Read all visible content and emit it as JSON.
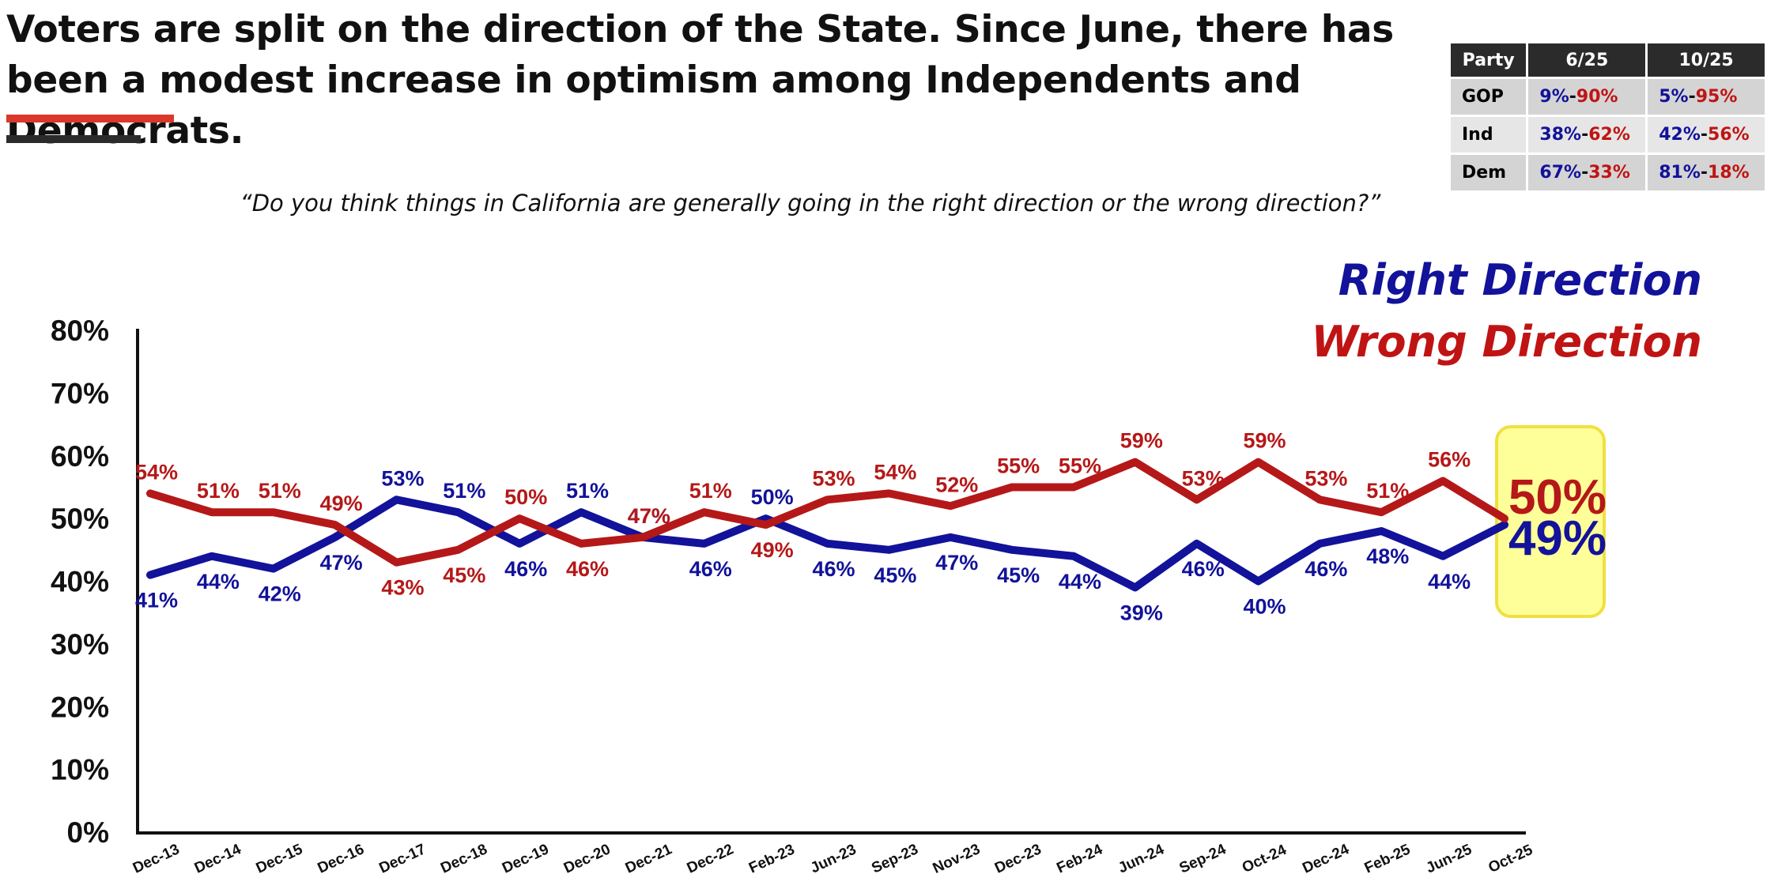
{
  "title": "Voters are split on the direction of the State. Since June, there has been a modest increase in optimism among Independents and Democrats.",
  "question": "“Do you think things in California are generally going in the right direction or the wrong direction?”",
  "party_table": {
    "headers": [
      "Party",
      "6/25",
      "10/25"
    ],
    "rows": [
      {
        "party": "GOP",
        "jun_right": "9%",
        "jun_wrong": "90%",
        "oct_right": "5%",
        "oct_wrong": "95%"
      },
      {
        "party": "Ind",
        "jun_right": "38%",
        "jun_wrong": "62%",
        "oct_right": "42%",
        "oct_wrong": "56%"
      },
      {
        "party": "Dem",
        "jun_right": "67%",
        "jun_wrong": "33%",
        "oct_right": "81%",
        "oct_wrong": "18%"
      }
    ]
  },
  "legend": {
    "right": "Right Direction",
    "wrong": "Wrong Direction"
  },
  "highlight": {
    "wrong": "50%",
    "right": "49%"
  },
  "colors": {
    "right": "#12129a",
    "wrong": "#b51818",
    "highlight_fill": "#ffff99",
    "highlight_border": "#f0e040"
  },
  "chart_data": {
    "type": "line",
    "categories": [
      "Dec-13",
      "Dec-14",
      "Dec-15",
      "Dec-16",
      "Dec-17",
      "Dec-18",
      "Dec-19",
      "Dec-20",
      "Dec-21",
      "Dec-22",
      "Feb-23",
      "Jun-23",
      "Sep-23",
      "Nov-23",
      "Dec-23",
      "Feb-24",
      "Jun-24",
      "Sep-24",
      "Oct-24",
      "Dec-24",
      "Feb-25",
      "Jun-25",
      "Oct-25"
    ],
    "series": [
      {
        "name": "Right Direction",
        "values": [
          41,
          44,
          42,
          47,
          53,
          51,
          46,
          51,
          47,
          46,
          50,
          46,
          45,
          47,
          45,
          44,
          39,
          46,
          40,
          46,
          48,
          44,
          49
        ]
      },
      {
        "name": "Wrong Direction",
        "values": [
          54,
          51,
          51,
          49,
          43,
          45,
          50,
          46,
          47,
          51,
          49,
          53,
          54,
          52,
          55,
          55,
          59,
          53,
          59,
          53,
          51,
          56,
          50
        ]
      }
    ],
    "y_ticks": [
      "0%",
      "10%",
      "20%",
      "30%",
      "40%",
      "50%",
      "60%",
      "70%",
      "80%"
    ],
    "ylim": [
      0,
      80
    ],
    "grid": false
  }
}
